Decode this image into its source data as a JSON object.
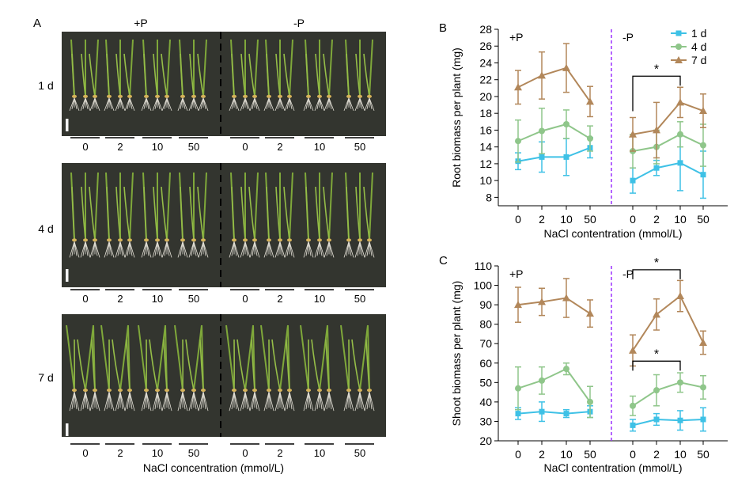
{
  "panel_a": {
    "letter": "A",
    "conditions": [
      "+P",
      "-P"
    ],
    "rows": [
      "1 d",
      "4 d",
      "7 d"
    ],
    "concentrations": [
      "0",
      "2",
      "10",
      "50"
    ],
    "xlabel": "NaCl concentration (mmol/L)"
  },
  "chart_data": [
    {
      "panel": "B",
      "type": "line",
      "ylabel": "Root biomass per plant (mg)",
      "xlabel": "NaCl contentration (mmol/L)",
      "group_labels": [
        "+P",
        "-P"
      ],
      "categories": [
        "0",
        "2",
        "10",
        "50"
      ],
      "ylim": [
        7,
        28
      ],
      "yticks": [
        8,
        10,
        12,
        14,
        16,
        18,
        20,
        22,
        24,
        26,
        28
      ],
      "legend": "top-right",
      "series": [
        {
          "name": "1 d",
          "color": "#3ec1e6",
          "marker": "square",
          "plus_p": [
            12.3,
            12.8,
            12.8,
            13.9
          ],
          "plus_p_err": [
            1.0,
            1.8,
            2.2,
            1.2
          ],
          "minus_p": [
            10.0,
            11.5,
            12.1,
            10.7
          ],
          "minus_p_err": [
            1.5,
            0.9,
            3.3,
            2.8
          ]
        },
        {
          "name": "4 d",
          "color": "#8fc68a",
          "marker": "circle",
          "plus_p": [
            14.7,
            15.9,
            16.7,
            15.0
          ],
          "plus_p_err": [
            2.5,
            2.7,
            1.7,
            1.5
          ],
          "minus_p": [
            13.5,
            14.0,
            15.5,
            14.2
          ],
          "minus_p_err": [
            2.0,
            2.0,
            1.5,
            2.5
          ]
        },
        {
          "name": "7 d",
          "color": "#b2875a",
          "marker": "triangle",
          "plus_p": [
            21.1,
            22.5,
            23.4,
            19.4
          ],
          "plus_p_err": [
            2.0,
            2.8,
            2.9,
            1.8
          ],
          "minus_p": [
            15.5,
            16.0,
            19.3,
            18.3
          ],
          "minus_p_err": [
            2.0,
            3.3,
            1.8,
            2.0
          ]
        }
      ],
      "significance": [
        {
          "label": "*",
          "group": "minus_p",
          "from": 0,
          "to": 2
        }
      ]
    },
    {
      "panel": "C",
      "type": "line",
      "ylabel": "Shoot biomass per plant (mg)",
      "xlabel": "NaCl contentration (mmol/L)",
      "group_labels": [
        "+P",
        "-P"
      ],
      "categories": [
        "0",
        "2",
        "10",
        "50"
      ],
      "ylim": [
        20,
        110
      ],
      "yticks": [
        20,
        30,
        40,
        50,
        60,
        70,
        80,
        90,
        100,
        110
      ],
      "series": [
        {
          "name": "1 d",
          "color": "#3ec1e6",
          "marker": "square",
          "plus_p": [
            34,
            35,
            34,
            35
          ],
          "plus_p_err": [
            3,
            5,
            2,
            3
          ],
          "minus_p": [
            28,
            31,
            30.5,
            31
          ],
          "minus_p_err": [
            3,
            3,
            5,
            6
          ]
        },
        {
          "name": "4 d",
          "color": "#8fc68a",
          "marker": "circle",
          "plus_p": [
            47,
            51,
            57,
            40
          ],
          "plus_p_err": [
            11,
            7,
            3,
            8
          ],
          "minus_p": [
            38,
            46,
            50,
            47.5
          ],
          "minus_p_err": [
            5,
            8,
            5,
            6
          ]
        },
        {
          "name": "7 d",
          "color": "#b2875a",
          "marker": "triangle",
          "plus_p": [
            90,
            91.5,
            93.5,
            85.5
          ],
          "plus_p_err": [
            9,
            7,
            10,
            7
          ],
          "minus_p": [
            66.5,
            85,
            94.5,
            70.5
          ],
          "minus_p_err": [
            8,
            8,
            8,
            6
          ]
        }
      ],
      "significance": [
        {
          "label": "*",
          "group": "minus_p",
          "from": 0,
          "to": 2,
          "level": 108
        },
        {
          "label": "*",
          "group": "minus_p",
          "from": 0,
          "to": 2,
          "level": 61
        }
      ]
    }
  ],
  "colors": {
    "photo_background": "#33352f",
    "divider": "#000000",
    "p_divider": "#9b30ff"
  }
}
